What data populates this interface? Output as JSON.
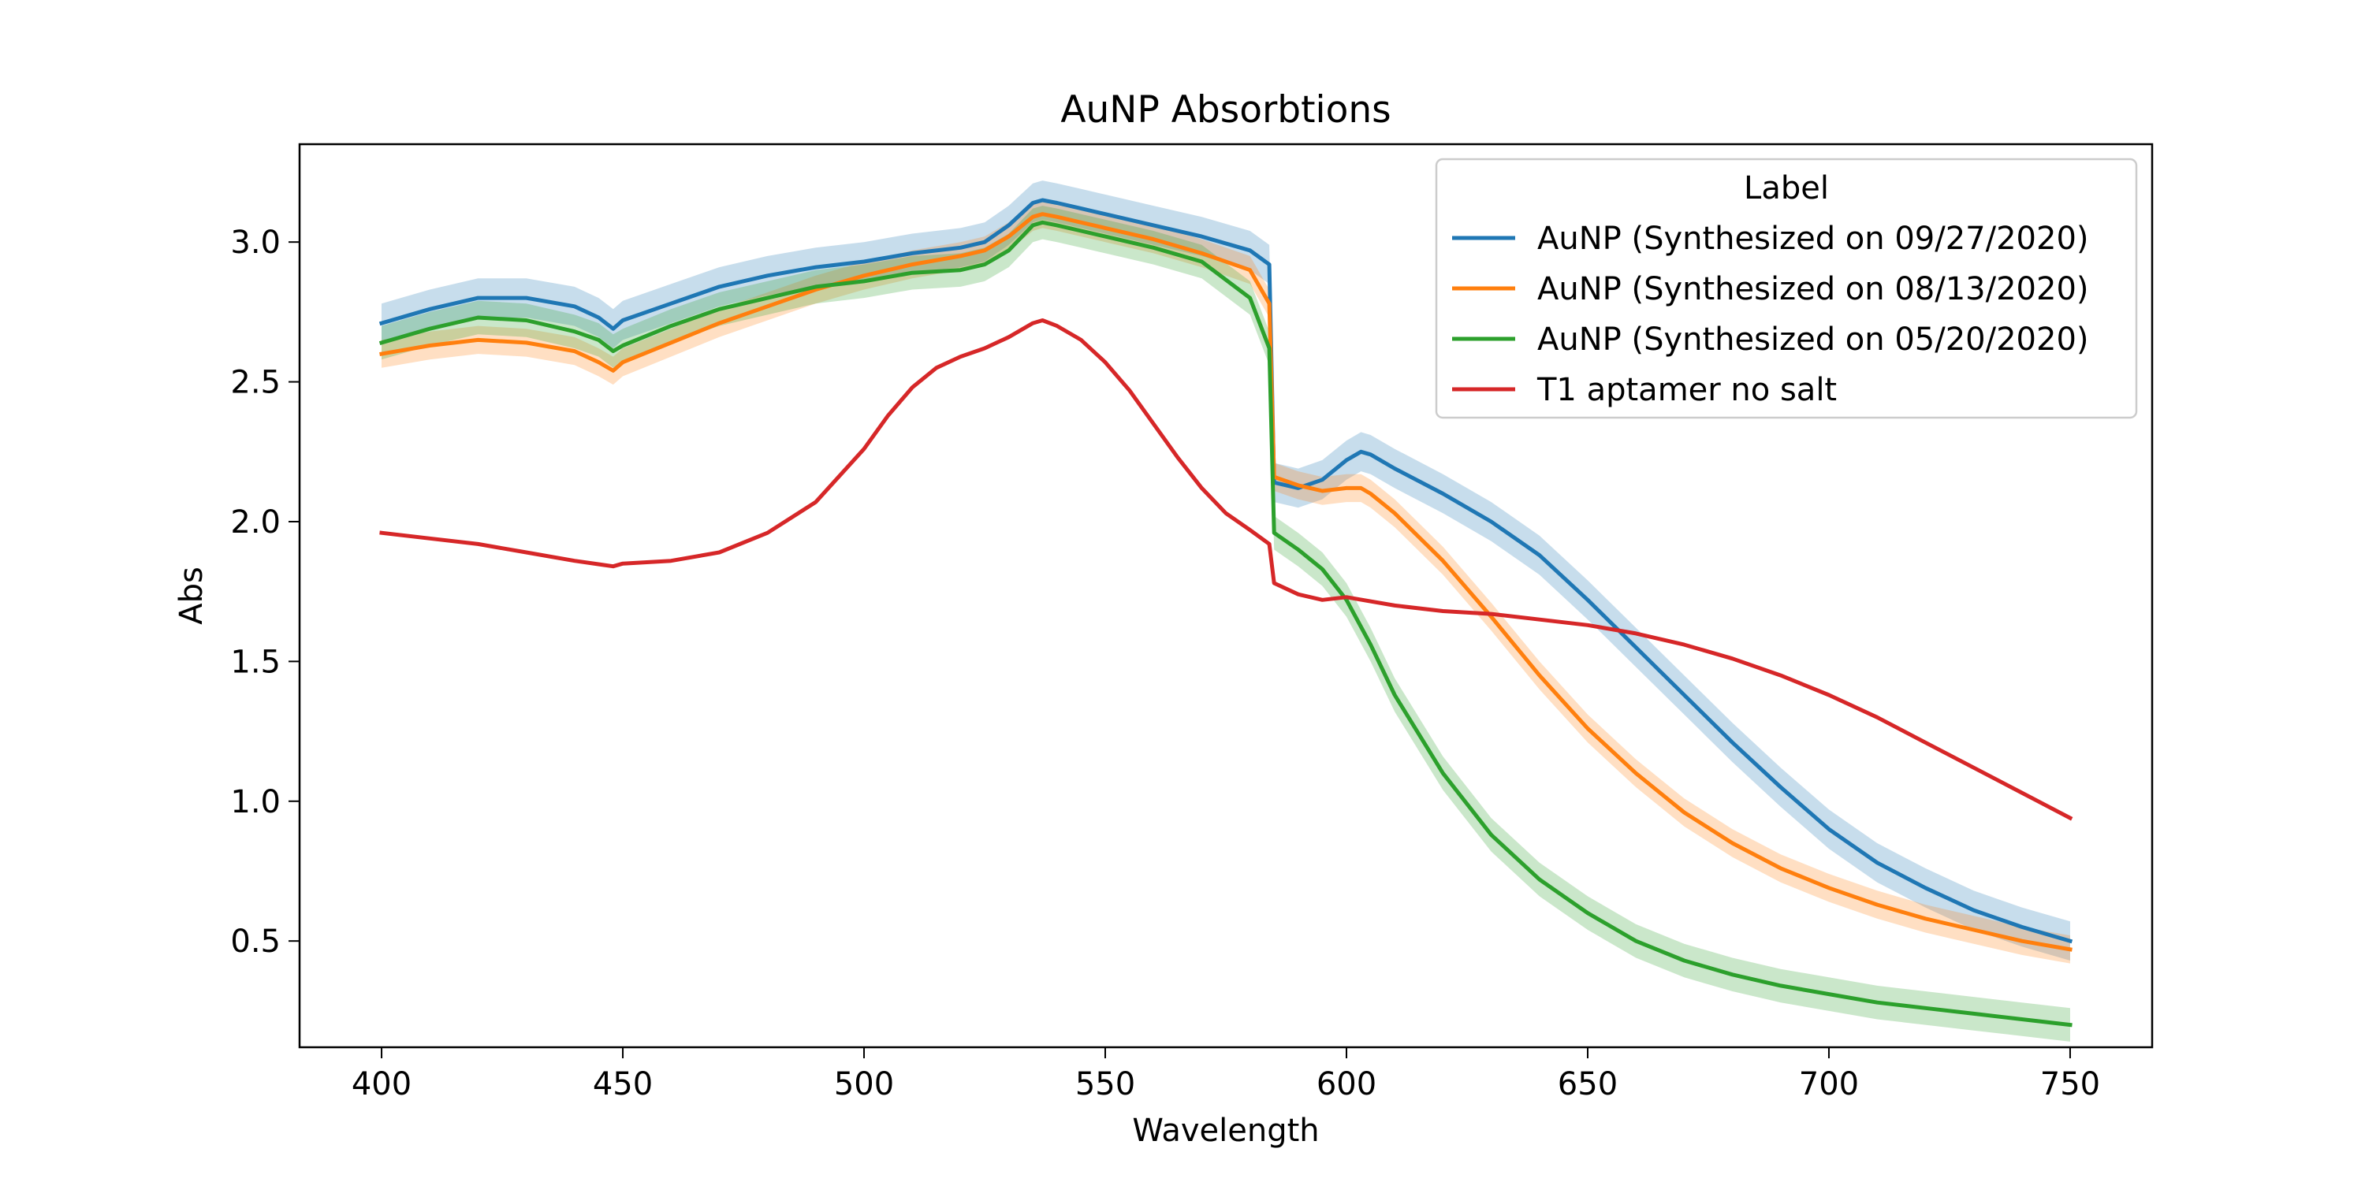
{
  "chart_data": {
    "type": "line",
    "title": "AuNP Absorbtions",
    "xlabel": "Wavelength",
    "ylabel": "Abs",
    "xlim": [
      383,
      767
    ],
    "ylim": [
      0.12,
      3.35
    ],
    "xticks": [
      400,
      450,
      500,
      550,
      600,
      650,
      700,
      750
    ],
    "yticks": [
      0.5,
      1.0,
      1.5,
      2.0,
      2.5,
      3.0
    ],
    "xtick_labels": [
      "400",
      "450",
      "500",
      "550",
      "600",
      "650",
      "700",
      "750"
    ],
    "ytick_labels": [
      "0.5",
      "1.0",
      "1.5",
      "2.0",
      "2.5",
      "3.0"
    ],
    "grid": false,
    "legend": {
      "title": "Label",
      "placement": "top-right"
    },
    "series": [
      {
        "name": "AuNP (Synthesized on 09/27/2020)",
        "color": "#1f77b4",
        "band": 0.07,
        "x": [
          400,
          410,
          420,
          430,
          440,
          445,
          448,
          450,
          460,
          470,
          480,
          490,
          500,
          510,
          520,
          525,
          530,
          535,
          537,
          540,
          545,
          550,
          560,
          570,
          580,
          584,
          585,
          590,
          595,
          600,
          603,
          605,
          610,
          620,
          630,
          640,
          650,
          660,
          670,
          680,
          690,
          700,
          710,
          720,
          730,
          740,
          750
        ],
        "y": [
          2.71,
          2.76,
          2.8,
          2.8,
          2.77,
          2.73,
          2.69,
          2.72,
          2.78,
          2.84,
          2.88,
          2.91,
          2.93,
          2.96,
          2.98,
          3.0,
          3.06,
          3.14,
          3.15,
          3.14,
          3.12,
          3.1,
          3.06,
          3.02,
          2.97,
          2.92,
          2.14,
          2.12,
          2.15,
          2.22,
          2.25,
          2.24,
          2.19,
          2.1,
          2.0,
          1.88,
          1.72,
          1.55,
          1.38,
          1.21,
          1.05,
          0.9,
          0.78,
          0.69,
          0.61,
          0.55,
          0.5
        ]
      },
      {
        "name": "AuNP (Synthesized on 08/13/2020)",
        "color": "#ff7f0e",
        "band": 0.05,
        "x": [
          400,
          410,
          420,
          430,
          440,
          445,
          448,
          450,
          460,
          470,
          480,
          490,
          500,
          510,
          520,
          525,
          530,
          535,
          537,
          540,
          545,
          550,
          560,
          570,
          580,
          584,
          585,
          590,
          595,
          600,
          603,
          605,
          610,
          620,
          630,
          640,
          650,
          660,
          670,
          680,
          690,
          700,
          710,
          720,
          730,
          740,
          750
        ],
        "y": [
          2.6,
          2.63,
          2.65,
          2.64,
          2.61,
          2.57,
          2.54,
          2.57,
          2.64,
          2.71,
          2.77,
          2.83,
          2.88,
          2.92,
          2.95,
          2.97,
          3.02,
          3.09,
          3.1,
          3.09,
          3.07,
          3.05,
          3.01,
          2.96,
          2.9,
          2.78,
          2.16,
          2.13,
          2.11,
          2.12,
          2.12,
          2.1,
          2.03,
          1.86,
          1.66,
          1.45,
          1.26,
          1.1,
          0.96,
          0.85,
          0.76,
          0.69,
          0.63,
          0.58,
          0.54,
          0.5,
          0.47
        ]
      },
      {
        "name": "AuNP (Synthesized on 05/20/2020)",
        "color": "#2ca02c",
        "band": 0.06,
        "x": [
          400,
          410,
          420,
          430,
          440,
          445,
          448,
          450,
          460,
          470,
          480,
          490,
          500,
          510,
          520,
          525,
          530,
          535,
          537,
          540,
          545,
          550,
          560,
          570,
          580,
          584,
          585,
          590,
          595,
          600,
          605,
          610,
          620,
          630,
          640,
          650,
          660,
          670,
          680,
          690,
          700,
          710,
          720,
          730,
          740,
          750
        ],
        "y": [
          2.64,
          2.69,
          2.73,
          2.72,
          2.68,
          2.65,
          2.61,
          2.63,
          2.7,
          2.76,
          2.8,
          2.84,
          2.86,
          2.89,
          2.9,
          2.92,
          2.97,
          3.06,
          3.07,
          3.06,
          3.04,
          3.02,
          2.98,
          2.93,
          2.8,
          2.62,
          1.96,
          1.9,
          1.83,
          1.72,
          1.56,
          1.38,
          1.1,
          0.88,
          0.72,
          0.6,
          0.5,
          0.43,
          0.38,
          0.34,
          0.31,
          0.28,
          0.26,
          0.24,
          0.22,
          0.2
        ]
      },
      {
        "name": "T1 aptamer no salt",
        "color": "#d62728",
        "band": 0,
        "x": [
          400,
          410,
          420,
          430,
          440,
          448,
          450,
          460,
          470,
          480,
          490,
          500,
          505,
          510,
          515,
          520,
          525,
          530,
          535,
          537,
          540,
          545,
          550,
          555,
          560,
          565,
          570,
          575,
          580,
          584,
          585,
          590,
          595,
          600,
          610,
          620,
          630,
          640,
          650,
          660,
          670,
          680,
          690,
          700,
          710,
          720,
          730,
          740,
          750
        ],
        "y": [
          1.96,
          1.94,
          1.92,
          1.89,
          1.86,
          1.84,
          1.85,
          1.86,
          1.89,
          1.96,
          2.07,
          2.26,
          2.38,
          2.48,
          2.55,
          2.59,
          2.62,
          2.66,
          2.71,
          2.72,
          2.7,
          2.65,
          2.57,
          2.47,
          2.35,
          2.23,
          2.12,
          2.03,
          1.97,
          1.92,
          1.78,
          1.74,
          1.72,
          1.73,
          1.7,
          1.68,
          1.67,
          1.65,
          1.63,
          1.6,
          1.56,
          1.51,
          1.45,
          1.38,
          1.3,
          1.21,
          1.12,
          1.03,
          0.94
        ]
      }
    ]
  }
}
